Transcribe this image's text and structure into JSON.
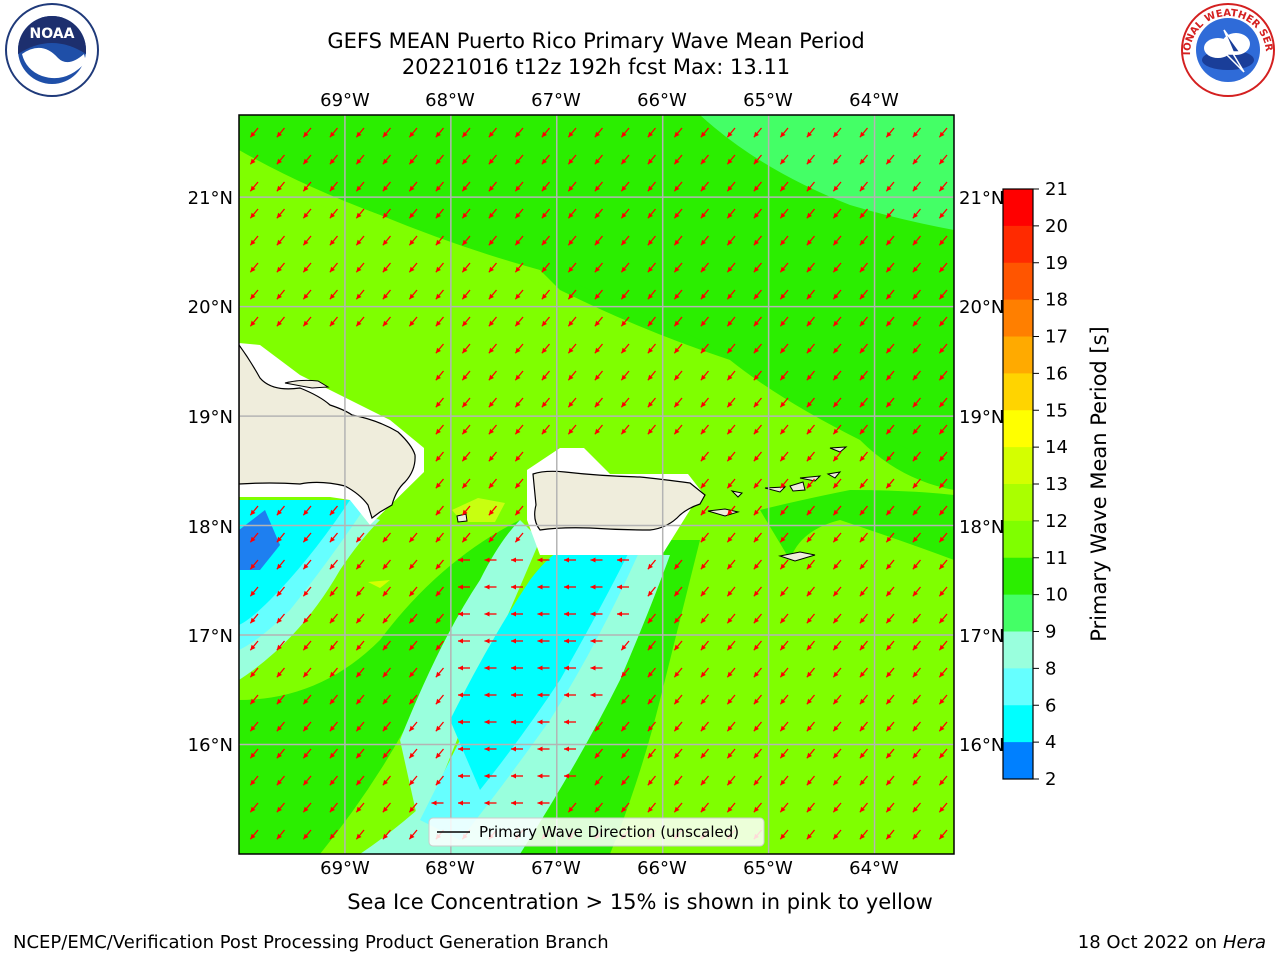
{
  "header": {
    "title_line1": "GEFS MEAN Puerto Rico Primary Wave Mean Period",
    "title_line2": "20221016 t12z 192h fcst   Max: 13.11"
  },
  "logos": {
    "left": {
      "icon": "noaa-logo",
      "text": "NOAA"
    },
    "right": {
      "icon": "nws-logo",
      "text": "NATIONAL WEATHER SERVICE"
    }
  },
  "map": {
    "lon_labels": [
      "69°W",
      "68°W",
      "67°W",
      "66°W",
      "65°W",
      "64°W"
    ],
    "lat_labels": [
      "21°N",
      "20°N",
      "19°N",
      "18°N",
      "17°N",
      "16°N"
    ],
    "lon_range": [
      -70.0,
      -63.25
    ],
    "lat_range": [
      15.0,
      21.75
    ],
    "legend_label": "Primary Wave Direction (unscaled)",
    "arrow_color": "#ff0000"
  },
  "colorbar": {
    "label": "Primary Wave Mean Period [s]",
    "ticks": [
      "21",
      "20",
      "19",
      "18",
      "17",
      "16",
      "15",
      "14",
      "13",
      "12",
      "11",
      "10",
      "9",
      "8",
      "6",
      "4",
      "2"
    ],
    "colors": [
      "#ff0000",
      "#ff2a00",
      "#ff5500",
      "#ff7f00",
      "#ffaa00",
      "#ffd400",
      "#ffff00",
      "#d4ff00",
      "#aaff00",
      "#7fff00",
      "#2bee00",
      "#44ff66",
      "#99ffdd",
      "#66ffff",
      "#00ffff",
      "#0080ff",
      "#0000ff"
    ]
  },
  "captions": {
    "ice": "Sea Ice Concentration > 15% is shown in pink to yellow",
    "footer_left": "NCEP/EMC/Verification Post Processing Product Generation Branch",
    "footer_date": "18 Oct 2022 on ",
    "footer_host": "Hera"
  }
}
